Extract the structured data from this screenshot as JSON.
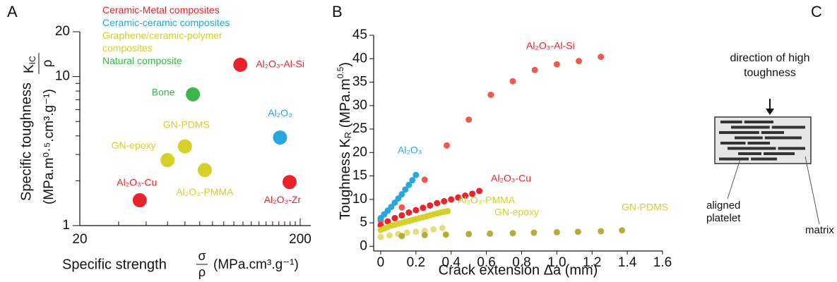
{
  "chart_data": [
    {
      "type": "scatter",
      "panel": "A",
      "xscale": "log",
      "yscale": "log",
      "xlim": [
        20,
        200
      ],
      "ylim": [
        1,
        20
      ],
      "xticks": [
        20,
        200
      ],
      "yticks": [
        1,
        10,
        20
      ],
      "xminor_ticks": [
        30,
        40,
        50,
        60,
        70,
        80,
        90,
        100,
        110,
        120,
        130,
        140,
        150,
        160,
        170,
        180,
        190
      ],
      "yminor_ticks": [
        2,
        3,
        4,
        5,
        6,
        7,
        8,
        9
      ],
      "xlabel": {
        "text": "Specific strength",
        "numerator": "σ",
        "denominator": "ρ",
        "units": "(MPa.cm³.g⁻¹)"
      },
      "ylabel": {
        "text": "Specific toughness",
        "numerator": "K",
        "numerator_sub": "IC",
        "denominator": "ρ",
        "units": "(MPa.m⁰·⁵.cm³.g⁻¹)"
      },
      "series": [
        {
          "name": "Ceramic-Metal composites",
          "color": "#e8232d",
          "labels": [
            "Al₂O₃-Al-Si",
            "Al₂O₃-Cu",
            "Al₂O₃-Zr"
          ],
          "x": [
            107,
            37.4,
            179
          ],
          "values": [
            12,
            1.48,
            1.96
          ]
        },
        {
          "name": "Ceramic-ceramic composites",
          "color": "#27a6df",
          "labels": [
            "Al₂O₃"
          ],
          "x": [
            162
          ],
          "values": [
            3.9
          ]
        },
        {
          "name": "Graphene/ceramic-polymer composites",
          "color": "#d5d02b",
          "labels": [
            "GN-PDMS",
            "GN-epoxy",
            "Al₂O₃-PMMA"
          ],
          "x": [
            60,
            50,
            73.8
          ],
          "values": [
            3.4,
            2.75,
            2.36
          ]
        },
        {
          "name": "Natural composite",
          "color": "#3cb54a",
          "labels": [
            "Bone"
          ],
          "x": [
            65.2
          ],
          "values": [
            7.6
          ]
        }
      ]
    },
    {
      "type": "scatter",
      "panel": "B",
      "xlim": [
        -0.04,
        1.6
      ],
      "ylim": [
        -1,
        45
      ],
      "xticks": [
        0,
        0.2,
        0.4,
        0.6,
        0.8,
        {
          "value": 1,
          "label": "1.0"
        },
        1.2,
        1.4,
        1.6
      ],
      "yticks": [
        0,
        5,
        10,
        15,
        20,
        25,
        30,
        35,
        40,
        45
      ],
      "xlabel": "Crack extension Δa (mm)",
      "ylabel": {
        "text": "Toughness K",
        "sub": "R",
        "units": "(MPa.m",
        "sup": "0.5",
        "close": ")"
      },
      "series": [
        {
          "name": "Al₂O₃-Al-Si",
          "color": "#ee5a4f",
          "x": [
            0,
            0.12,
            0.25,
            0.375,
            0.5,
            0.625,
            0.75,
            0.875,
            1.0,
            1.125,
            1.25
          ],
          "values": [
            5.5,
            8.3,
            14.2,
            21.5,
            27,
            32.3,
            35.2,
            37.6,
            38.8,
            39.5,
            40.4
          ]
        },
        {
          "name": "Al₂O₃",
          "color": "#27a6df",
          "x": [
            0,
            0.02,
            0.04,
            0.06,
            0.08,
            0.1,
            0.12,
            0.14,
            0.16,
            0.18,
            0.2
          ],
          "values": [
            6,
            6.8,
            7.6,
            8.4,
            9.3,
            10.2,
            11.1,
            12.1,
            13.1,
            14.1,
            15.2
          ]
        },
        {
          "name": "Al₂O₃-Cu",
          "color": "#e8232d",
          "x": [
            0,
            0.04,
            0.08,
            0.12,
            0.16,
            0.2,
            0.24,
            0.28,
            0.32,
            0.36,
            0.4,
            0.44,
            0.48,
            0.52,
            0.56
          ],
          "values": [
            4.5,
            5.3,
            6,
            6.6,
            7.2,
            7.7,
            8.2,
            8.7,
            9.2,
            9.6,
            10,
            10.4,
            10.8,
            11.2,
            11.8
          ]
        },
        {
          "name": "Al₂O₃-PMMA",
          "color": "#d5d02b",
          "x": [
            0,
            0.02,
            0.04,
            0.06,
            0.08,
            0.1,
            0.12,
            0.14,
            0.16,
            0.18,
            0.2,
            0.22,
            0.24,
            0.26,
            0.28,
            0.3,
            0.32,
            0.34,
            0.36,
            0.38
          ],
          "values": [
            3.5,
            3.8,
            4.1,
            4.4,
            4.6,
            4.8,
            5,
            5.2,
            5.4,
            5.6,
            5.8,
            6,
            6.2,
            6.4,
            6.6,
            6.8,
            7,
            7.2,
            7.35,
            7.5
          ]
        },
        {
          "name": "GN-epoxy",
          "color": "#e3df7c",
          "x": [
            0,
            0.05,
            0.1,
            0.15,
            0.2,
            0.25,
            0.3,
            0.35
          ],
          "values": [
            2,
            2.3,
            2.6,
            2.9,
            3.1,
            3.3,
            3.6,
            3.9
          ]
        },
        {
          "name": "GN-PDMS",
          "color": "#b3ae3c",
          "x": [
            0.12,
            0.25,
            0.37,
            0.5,
            0.62,
            0.75,
            0.87,
            1.0,
            1.12,
            1.25,
            1.37
          ],
          "values": [
            2.2,
            2.4,
            2.5,
            2.6,
            2.7,
            2.8,
            2.9,
            3,
            3.1,
            3.2,
            3.4
          ]
        }
      ]
    }
  ],
  "diagram": {
    "panel": "C",
    "arrow_text": "direction of high toughness",
    "platelet_label": "aligned platelet",
    "matrix_label": "matrix"
  }
}
